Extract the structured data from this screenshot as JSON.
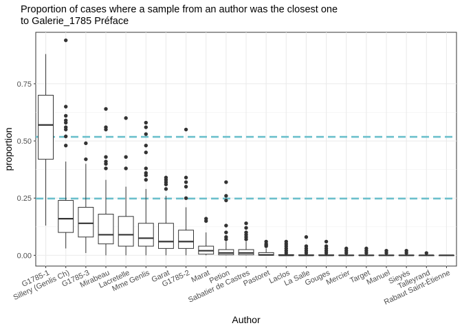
{
  "chart_data": {
    "type": "boxplot",
    "title_lines": [
      "Proportion of cases where a sample from an author was the closest one",
      "to Galerie_1785 Préface"
    ],
    "xlabel": "Author",
    "ylabel": "proportion",
    "ylim": [
      -0.047,
      0.975
    ],
    "yticks": [
      0.0,
      0.25,
      0.5,
      0.75
    ],
    "ytick_labels": [
      "0.00",
      "0.25",
      "0.50",
      "0.75"
    ],
    "grid": true,
    "reference_lines": [
      {
        "y": 0.518,
        "color": "#6ABFCB",
        "style": "dashed"
      },
      {
        "y": 0.248,
        "color": "#6ABFCB",
        "style": "dashed"
      }
    ],
    "categories": [
      "G1785-1",
      "Sillery (Genlis Ch)",
      "G1785-3",
      "Mirabeau",
      "Lacretelle",
      "Mme Genlis",
      "Garat",
      "G1785-2",
      "Marat",
      "Petion",
      "Sabatier de Castres",
      "Pastoret",
      "Laclos",
      "La Salle",
      "Gouges",
      "Mercier",
      "Target",
      "Manuel",
      "Sieyès",
      "Talleyrand",
      "Rabaut Saint-Étienne"
    ],
    "boxes": [
      {
        "q1": 0.42,
        "median": 0.57,
        "q3": 0.7,
        "whisker_low": 0.13,
        "whisker_high": 0.88,
        "outliers": []
      },
      {
        "q1": 0.1,
        "median": 0.16,
        "q3": 0.24,
        "whisker_low": 0.03,
        "whisker_high": 0.41,
        "outliers": [
          0.94,
          0.65,
          0.61,
          0.59,
          0.58,
          0.56,
          0.55,
          0.52,
          0.48
        ]
      },
      {
        "q1": 0.08,
        "median": 0.14,
        "q3": 0.21,
        "whisker_low": 0.01,
        "whisker_high": 0.4,
        "outliers": [
          0.49,
          0.42
        ]
      },
      {
        "q1": 0.05,
        "median": 0.09,
        "q3": 0.18,
        "whisker_low": 0.0,
        "whisker_high": 0.33,
        "outliers": [
          0.64,
          0.56,
          0.55,
          0.43,
          0.41,
          0.4,
          0.38
        ]
      },
      {
        "q1": 0.04,
        "median": 0.09,
        "q3": 0.17,
        "whisker_low": 0.0,
        "whisker_high": 0.3,
        "outliers": [
          0.6,
          0.43,
          0.38
        ]
      },
      {
        "q1": 0.04,
        "median": 0.075,
        "q3": 0.14,
        "whisker_low": 0.0,
        "whisker_high": 0.29,
        "outliers": [
          0.58,
          0.56,
          0.53,
          0.48,
          0.45,
          0.38,
          0.36,
          0.35,
          0.33
        ]
      },
      {
        "q1": 0.03,
        "median": 0.06,
        "q3": 0.14,
        "whisker_low": 0.0,
        "whisker_high": 0.26,
        "outliers": [
          0.34,
          0.33,
          0.32,
          0.31,
          0.29
        ]
      },
      {
        "q1": 0.03,
        "median": 0.06,
        "q3": 0.11,
        "whisker_low": 0.0,
        "whisker_high": 0.21,
        "outliers": [
          0.55,
          0.34,
          0.32,
          0.3,
          0.25
        ]
      },
      {
        "q1": 0.005,
        "median": 0.02,
        "q3": 0.04,
        "whisker_low": 0.0,
        "whisker_high": 0.1,
        "outliers": [
          0.16,
          0.15
        ]
      },
      {
        "q1": 0.002,
        "median": 0.01,
        "q3": 0.025,
        "whisker_low": 0.0,
        "whisker_high": 0.06,
        "outliers": [
          0.32,
          0.26,
          0.24,
          0.13,
          0.1,
          0.08,
          0.07
        ]
      },
      {
        "q1": 0.002,
        "median": 0.01,
        "q3": 0.025,
        "whisker_low": 0.0,
        "whisker_high": 0.06,
        "outliers": [
          0.14,
          0.12,
          0.1,
          0.09,
          0.08,
          0.07
        ]
      },
      {
        "q1": 0.0,
        "median": 0.002,
        "q3": 0.012,
        "whisker_low": 0.0,
        "whisker_high": 0.03,
        "outliers": [
          0.06,
          0.05,
          0.045,
          0.04
        ]
      },
      {
        "q1": 0.0,
        "median": 0.0,
        "q3": 0.003,
        "whisker_low": 0.0,
        "whisker_high": 0.005,
        "outliers": [
          0.06,
          0.05,
          0.04,
          0.03,
          0.02,
          0.01
        ]
      },
      {
        "q1": 0.0,
        "median": 0.0,
        "q3": 0.002,
        "whisker_low": 0.0,
        "whisker_high": 0.004,
        "outliers": [
          0.08,
          0.04,
          0.03,
          0.02,
          0.01
        ]
      },
      {
        "q1": 0.0,
        "median": 0.0,
        "q3": 0.002,
        "whisker_low": 0.0,
        "whisker_high": 0.004,
        "outliers": [
          0.06,
          0.04,
          0.03,
          0.02,
          0.01
        ]
      },
      {
        "q1": 0.0,
        "median": 0.0,
        "q3": 0.001,
        "whisker_low": 0.0,
        "whisker_high": 0.002,
        "outliers": [
          0.03,
          0.02,
          0.01
        ]
      },
      {
        "q1": 0.0,
        "median": 0.0,
        "q3": 0.001,
        "whisker_low": 0.0,
        "whisker_high": 0.002,
        "outliers": [
          0.03,
          0.02,
          0.01
        ]
      },
      {
        "q1": 0.0,
        "median": 0.0,
        "q3": 0.001,
        "whisker_low": 0.0,
        "whisker_high": 0.002,
        "outliers": [
          0.02,
          0.01
        ]
      },
      {
        "q1": 0.0,
        "median": 0.0,
        "q3": 0.001,
        "whisker_low": 0.0,
        "whisker_high": 0.002,
        "outliers": [
          0.02,
          0.01
        ]
      },
      {
        "q1": 0.0,
        "median": 0.0,
        "q3": 0.0,
        "whisker_low": 0.0,
        "whisker_high": 0.0,
        "outliers": [
          0.01
        ]
      },
      {
        "q1": 0.0,
        "median": 0.0,
        "q3": 0.0,
        "whisker_low": 0.0,
        "whisker_high": 0.0,
        "outliers": []
      }
    ]
  }
}
